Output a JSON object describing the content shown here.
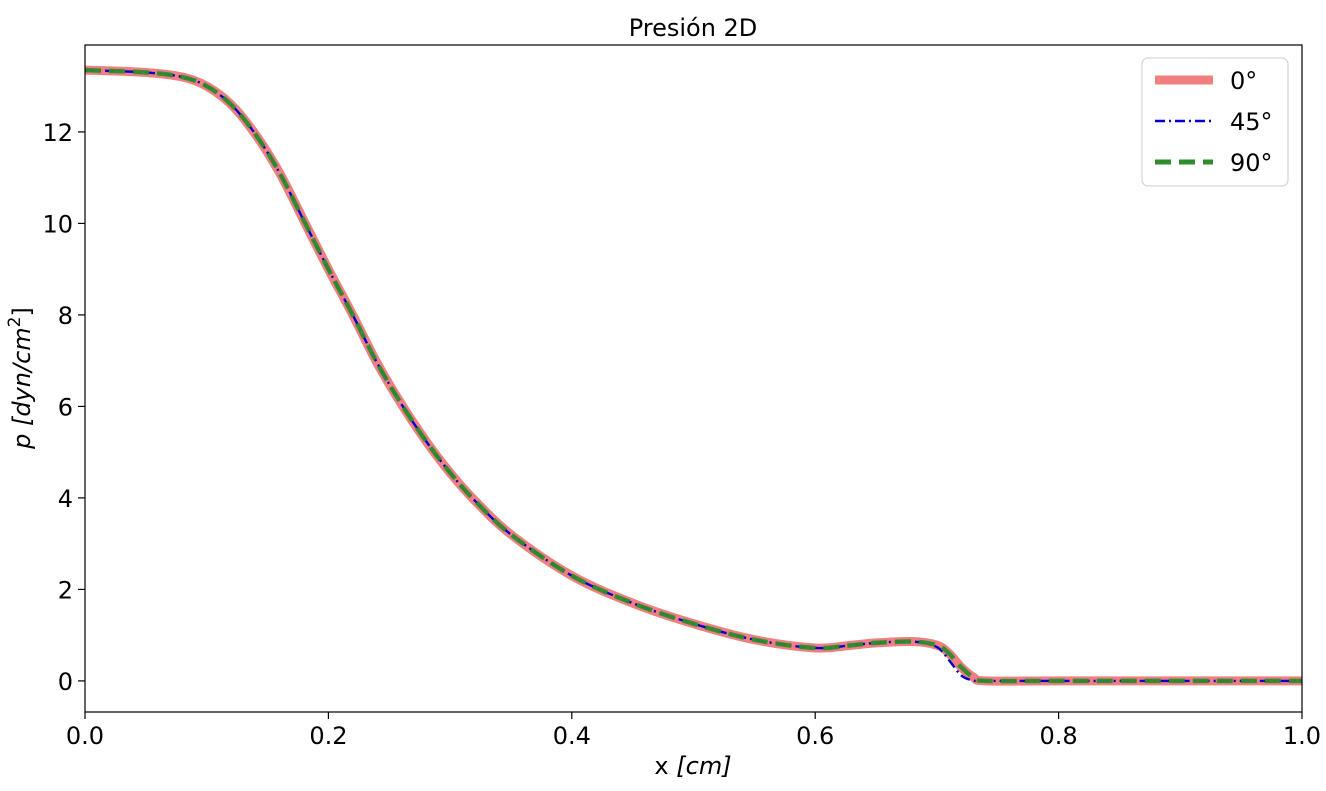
{
  "chart_data": {
    "type": "line",
    "title": "Presión 2D",
    "xlabel_main": "x ",
    "xlabel_unit": "[cm]",
    "ylabel_main": "p ",
    "ylabel_unit": "[dyn/cm",
    "ylabel_exp": "2",
    "ylabel_close": "]",
    "xlim": [
      0.0,
      1.0
    ],
    "ylim": [
      -0.68,
      13.9
    ],
    "xticks": [
      0.0,
      0.2,
      0.4,
      0.6,
      0.8,
      1.0
    ],
    "xtick_labels": [
      "0.0",
      "0.2",
      "0.4",
      "0.6",
      "0.8",
      "1.0"
    ],
    "yticks": [
      0,
      2,
      4,
      6,
      8,
      10,
      12
    ],
    "ytick_labels": [
      "0",
      "2",
      "4",
      "6",
      "8",
      "10",
      "12"
    ],
    "grid": false,
    "legend_position": "top-right",
    "x": [
      0.0,
      0.05,
      0.08,
      0.1,
      0.12,
      0.14,
      0.16,
      0.18,
      0.2,
      0.22,
      0.24,
      0.26,
      0.28,
      0.3,
      0.32,
      0.35,
      0.4,
      0.45,
      0.5,
      0.55,
      0.6,
      0.63,
      0.65,
      0.68,
      0.7,
      0.71,
      0.72,
      0.73,
      0.74,
      0.8,
      0.9,
      1.0
    ],
    "series": [
      {
        "name": "0°",
        "color": "#f08080",
        "values": [
          13.35,
          13.3,
          13.2,
          13.0,
          12.6,
          11.95,
          11.1,
          10.05,
          9.0,
          8.0,
          6.95,
          6.05,
          5.25,
          4.55,
          3.95,
          3.2,
          2.3,
          1.7,
          1.25,
          0.9,
          0.72,
          0.78,
          0.83,
          0.86,
          0.78,
          0.6,
          0.3,
          0.08,
          0.0,
          0.0,
          0.0,
          0.0
        ]
      },
      {
        "name": "45°",
        "color": "#0000cc",
        "values": [
          13.35,
          13.3,
          13.2,
          13.0,
          12.6,
          11.95,
          11.1,
          10.05,
          9.0,
          8.0,
          6.95,
          6.05,
          5.25,
          4.55,
          3.95,
          3.2,
          2.3,
          1.7,
          1.25,
          0.9,
          0.72,
          0.78,
          0.83,
          0.86,
          0.74,
          0.45,
          0.12,
          0.01,
          0.0,
          0.0,
          0.0,
          0.0
        ]
      },
      {
        "name": "90°",
        "color": "#2e8b2e",
        "values": [
          13.35,
          13.3,
          13.2,
          13.0,
          12.6,
          11.95,
          11.1,
          10.05,
          9.0,
          8.0,
          6.95,
          6.05,
          5.25,
          4.55,
          3.95,
          3.2,
          2.3,
          1.7,
          1.25,
          0.9,
          0.72,
          0.78,
          0.83,
          0.86,
          0.78,
          0.6,
          0.3,
          0.08,
          0.0,
          0.0,
          0.0,
          0.0
        ]
      }
    ]
  }
}
